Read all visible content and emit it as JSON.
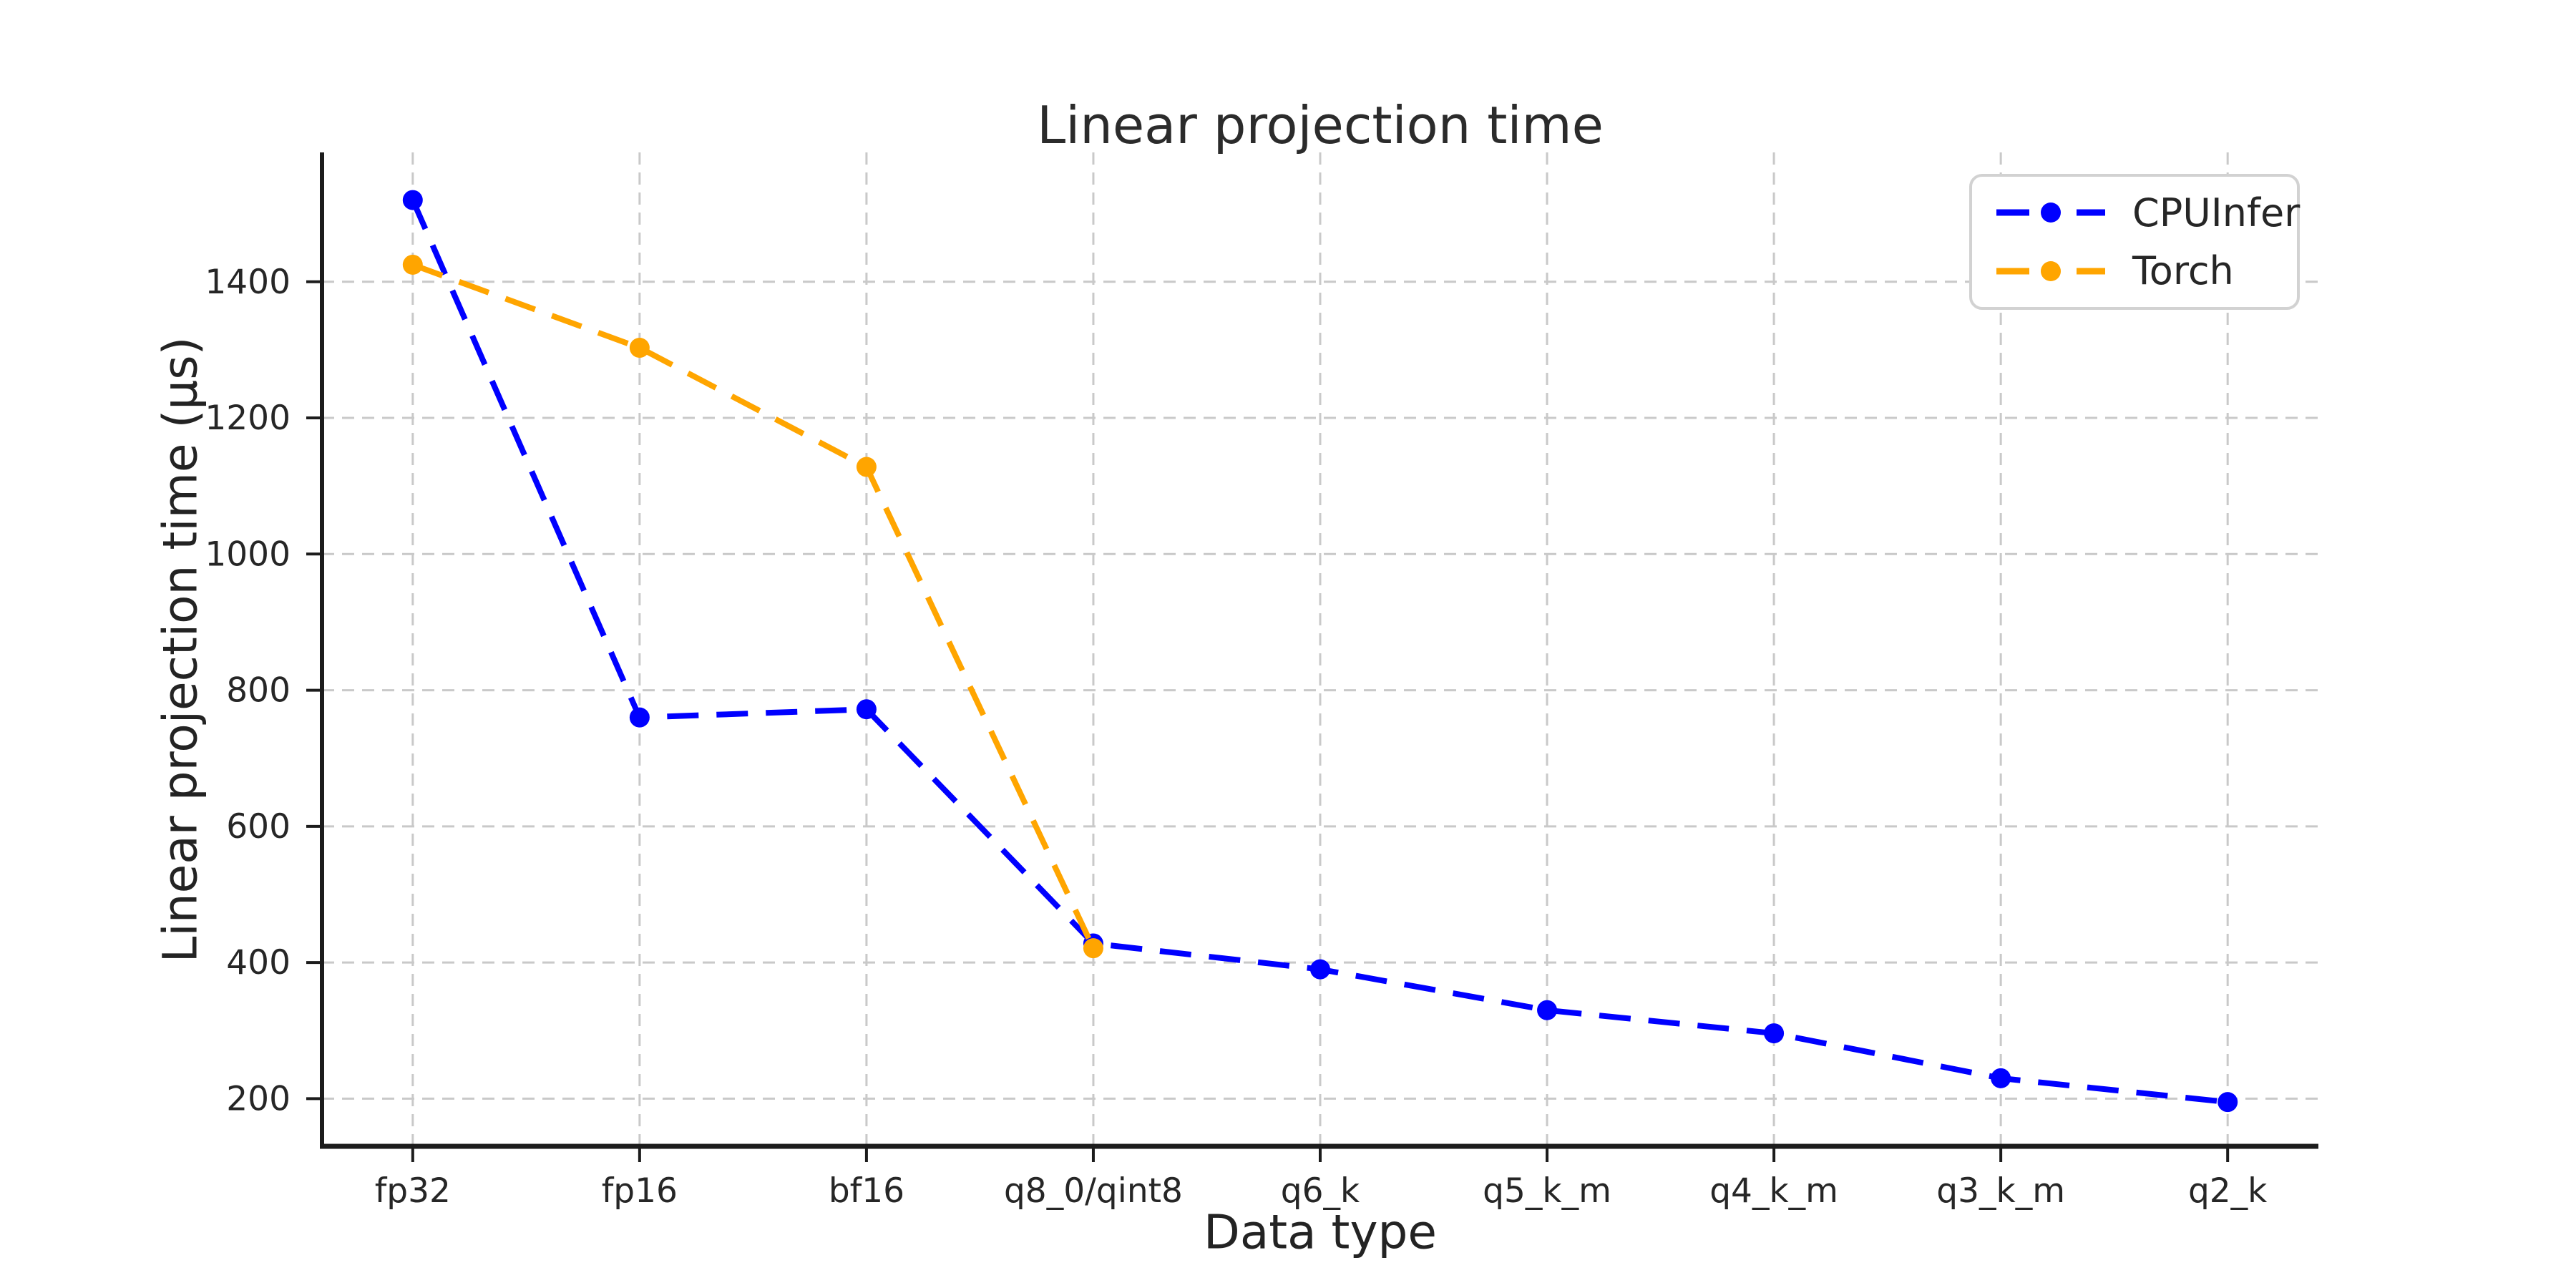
{
  "figure": {
    "background": "#ffffff",
    "text_color": "#262626",
    "spine_color": "#1c1c1c",
    "grid_color": "#c9c9c9"
  },
  "chart_data": {
    "type": "line",
    "title": "Linear projection time",
    "xlabel": "Data type",
    "ylabel": "Linear projection time (μs)",
    "categories": [
      "fp32",
      "fp16",
      "bf16",
      "q8_0/qint8",
      "q6_k",
      "q5_k_m",
      "q4_k_m",
      "q3_k_m",
      "q2_k"
    ],
    "series": [
      {
        "name": "CPUInfer",
        "color": "#0000ff",
        "line_style": "dashed",
        "marker": "circle",
        "values": [
          1520,
          760,
          772,
          428,
          390,
          330,
          296,
          230,
          195
        ]
      },
      {
        "name": "Torch",
        "color": "#ffa500",
        "line_style": "dashed",
        "marker": "circle",
        "values": [
          1425,
          1303,
          1128,
          421
        ]
      }
    ],
    "yticks": [
      200,
      400,
      600,
      800,
      1000,
      1200,
      1400
    ],
    "ylim": [
      130,
      1590
    ],
    "grid": true,
    "legend_position": "upper right"
  }
}
